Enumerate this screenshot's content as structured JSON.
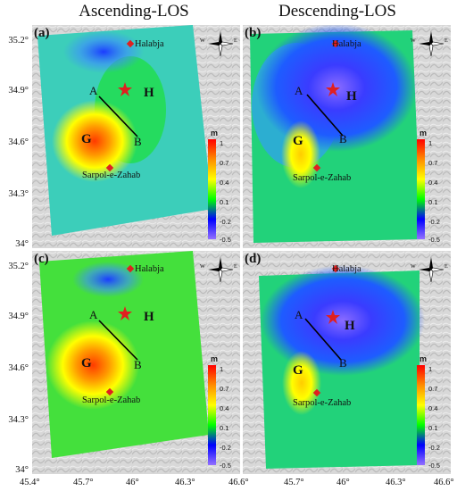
{
  "columns": [
    "Ascending-LOS",
    "Descending-LOS"
  ],
  "lat_ticks": [
    "35.2°",
    "34.9°",
    "34.6°",
    "34.3°",
    "34°"
  ],
  "lon_ticks_left": [
    "45.4°",
    "45.7°",
    "46°",
    "46.3°"
  ],
  "lon_ticks_right": [
    "46.6°",
    "45.7°",
    "46°",
    "46.3°",
    "46.6°"
  ],
  "panels": [
    {
      "label": "(a)",
      "dataset": "Ascending-LOS"
    },
    {
      "label": "(b)",
      "dataset": "Descending-LOS"
    },
    {
      "label": "(c)",
      "dataset": "Ascending-LOS"
    },
    {
      "label": "(d)",
      "dataset": "Descending-LOS"
    }
  ],
  "places": {
    "north_city": "Halabja",
    "south_city": "Sarpol-e-Zahab"
  },
  "features": {
    "uplift": "G",
    "subsidence": "H",
    "fault_start": "A",
    "fault_end": "B"
  },
  "colorbar": {
    "unit": "m",
    "ticks": [
      "1",
      "0.7",
      "0.4",
      "0.1",
      "-0.2",
      "-0.5"
    ],
    "colors": [
      "#ff0000",
      "#ff8c00",
      "#ffff00",
      "#00ff00",
      "#0000ff",
      "#9370ff"
    ]
  },
  "compass": {
    "w": "W",
    "e": "E"
  },
  "colors": {
    "epicenter_star": "#e02020",
    "city_marker": "#e02020"
  }
}
